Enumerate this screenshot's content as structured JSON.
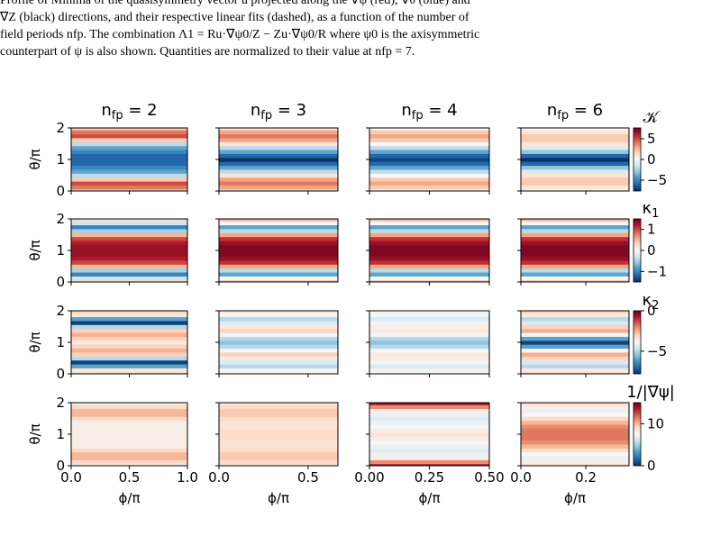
{
  "caption": [
    "Profile of Minima of the quasisymmetry vector u projected along the ∇ψ (red), ∇θ (blue) and",
    "∇Z (black) directions, and their respective linear fits (dashed), as a function of the number of",
    "field periods nfp. The combination Λ1 = Ru·∇ψ0/Z − Zu·∇ψ0/R where ψ0 is the axisymmetric",
    "counterpart of ψ is also shown. Quantities are normalized to their value at nfp = 7."
  ],
  "figure": {
    "x_label": "ϕ/π",
    "y_label": "θ/π",
    "ylim": [
      0,
      2
    ],
    "yticks": [
      0,
      1,
      2
    ],
    "theta_samples": [
      0,
      0.125,
      0.25,
      0.375,
      0.5,
      0.625,
      0.75,
      0.875,
      1,
      1.125,
      1.25,
      1.375,
      1.5,
      1.625,
      1.75,
      1.875,
      2
    ],
    "columns": [
      {
        "title": {
          "base": "n",
          "sub": "fp",
          "eq": " = 2"
        },
        "xlim": [
          0,
          1
        ],
        "xticks": [
          {
            "value": 0,
            "label": "0.0"
          },
          {
            "value": 0.5,
            "label": "0.5"
          },
          {
            "value": 1,
            "label": "1.0"
          }
        ]
      },
      {
        "title": {
          "base": "n",
          "sub": "fp",
          "eq": " = 3"
        },
        "xlim": [
          0,
          0.667
        ],
        "xticks": [
          {
            "value": 0,
            "label": "0.0"
          },
          {
            "value": 0.5,
            "label": "0.5"
          }
        ]
      },
      {
        "title": {
          "base": "n",
          "sub": "fp",
          "eq": " = 4"
        },
        "xlim": [
          0,
          0.5
        ],
        "xticks": [
          {
            "value": 0,
            "label": "0.00"
          },
          {
            "value": 0.25,
            "label": "0.25"
          },
          {
            "value": 0.5,
            "label": "0.50"
          }
        ]
      },
      {
        "title": {
          "base": "n",
          "sub": "fp",
          "eq": " = 6"
        },
        "xlim": [
          0,
          0.333
        ],
        "xticks": [
          {
            "value": 0,
            "label": "0.0"
          },
          {
            "value": 0.2,
            "label": "0.2"
          }
        ]
      }
    ],
    "rows": [
      {
        "colorbar_label": {
          "base": "𝒦",
          "sub": ""
        },
        "clim": [
          -7.6,
          7.6
        ],
        "cticks": [
          5,
          0,
          {
            "value": -5,
            "label": "−5"
          }
        ],
        "profiles": [
          [
            2,
            4,
            5,
            2,
            -2,
            -4,
            -5,
            -6,
            -6,
            -6,
            -5,
            -4,
            -2,
            2,
            5,
            4,
            2
          ],
          [
            1,
            3,
            4,
            3,
            1,
            -2,
            -4,
            -6,
            -7.5,
            -6,
            -4,
            -2,
            1,
            3,
            4,
            3,
            1
          ],
          [
            0,
            2,
            3,
            2,
            0,
            -2,
            -4,
            -6,
            -7,
            -6,
            -4,
            -2,
            0,
            2,
            3,
            2,
            0
          ],
          [
            0,
            1,
            2,
            2,
            1,
            -1,
            -3,
            -6,
            -7.5,
            -6,
            -3,
            -1,
            1,
            2,
            2,
            1,
            0
          ]
        ]
      },
      {
        "colorbar_label": {
          "base": "κ",
          "sub": "1"
        },
        "clim": [
          -1.5,
          1.5
        ],
        "cticks": [
          1,
          0,
          {
            "value": -1,
            "label": "−1"
          }
        ],
        "profiles": [
          [
            0.3,
            -0.3,
            -1,
            -0.5,
            0.5,
            1,
            1.2,
            1.3,
            1.3,
            1.3,
            1.2,
            1,
            0.5,
            -0.5,
            -1,
            -0.3,
            0.3
          ],
          [
            0.5,
            0,
            -0.8,
            -0.4,
            0.6,
            1.1,
            1.3,
            1.4,
            1.4,
            1.4,
            1.3,
            1.1,
            0.6,
            -0.4,
            -0.8,
            0,
            0.5
          ],
          [
            0.5,
            0,
            -0.8,
            -0.4,
            0.6,
            1.1,
            1.3,
            1.4,
            1.4,
            1.4,
            1.3,
            1.1,
            0.6,
            -0.4,
            -0.8,
            0,
            0.5
          ],
          [
            0.5,
            0,
            -0.8,
            -0.4,
            0.6,
            1.1,
            1.3,
            1.4,
            1.4,
            1.4,
            1.3,
            1.1,
            0.6,
            -0.4,
            -0.8,
            0,
            0.5
          ]
        ]
      },
      {
        "colorbar_label": {
          "base": "κ",
          "sub": "2"
        },
        "clim": [
          -7.8,
          0
        ],
        "cticks": [
          0,
          {
            "value": -5,
            "label": "−5"
          }
        ],
        "profiles": [
          [
            -3,
            -3.5,
            -6,
            -7.5,
            -5,
            -3,
            -2.5,
            -3,
            -3.5,
            -3,
            -2.5,
            -3,
            -5,
            -7.5,
            -6,
            -3.5,
            -3
          ],
          [
            -3.5,
            -4,
            -5,
            -4.5,
            -3.5,
            -3,
            -4,
            -5,
            -5.5,
            -5,
            -4,
            -3,
            -3.5,
            -4.5,
            -5,
            -4,
            -3.5
          ],
          [
            -3.8,
            -4,
            -4.5,
            -4,
            -3.6,
            -3.5,
            -4,
            -5,
            -5.5,
            -5,
            -4,
            -3.5,
            -3.6,
            -4,
            -4.5,
            -4,
            -3.8
          ],
          [
            -3,
            -3.5,
            -5,
            -4.5,
            -3,
            -2.5,
            -4,
            -6,
            -7.5,
            -6,
            -4,
            -2.5,
            -3,
            -4.5,
            -5,
            -3.5,
            -3
          ]
        ]
      },
      {
        "colorbar_label": {
          "base": "1/|∇ψ|",
          "sub": ""
        },
        "clim": [
          0,
          15
        ],
        "cticks": [
          0,
          10
        ],
        "profiles": [
          [
            8,
            9,
            10,
            10,
            9,
            8,
            8,
            8,
            8,
            8,
            8,
            8,
            9,
            10,
            10,
            9,
            8
          ],
          [
            8.5,
            9,
            9.5,
            9.5,
            9,
            8.5,
            8.5,
            9,
            9,
            9,
            8.5,
            8.5,
            9,
            9.5,
            9.5,
            9,
            8.5
          ],
          [
            14,
            11,
            8,
            7,
            6.5,
            7,
            7.5,
            8,
            8.5,
            8,
            7.5,
            7,
            6.5,
            7,
            8,
            11,
            14
          ],
          [
            9,
            8,
            7,
            7.5,
            9,
            10,
            11,
            11.5,
            11.5,
            11.5,
            11,
            10,
            9,
            7.5,
            7,
            8,
            9
          ]
        ]
      }
    ]
  }
}
